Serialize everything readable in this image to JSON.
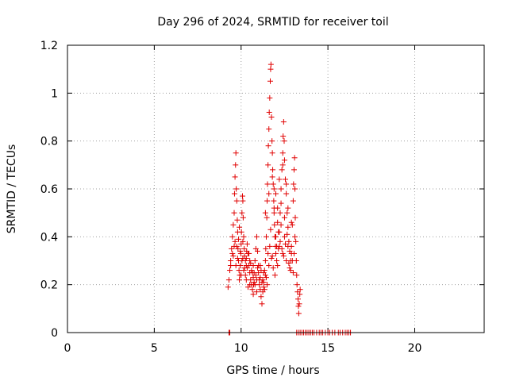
{
  "chart_data": {
    "type": "scatter",
    "title": "Day 296 of 2024, SRMTID for receiver toil",
    "xlabel": "GPS time / hours",
    "ylabel": "SRMTID / TECUs",
    "xlim": [
      0,
      24
    ],
    "ylim": [
      0,
      1.2
    ],
    "xticks": [
      0,
      5,
      10,
      15,
      20
    ],
    "yticks": [
      0,
      0.2,
      0.4,
      0.6,
      0.8,
      1,
      1.2
    ],
    "xtick_labels": [
      "0",
      "5",
      "10",
      "15",
      "20"
    ],
    "ytick_labels": [
      "0",
      "0.2",
      "0.4",
      "0.6",
      "0.8",
      "1",
      "1.2"
    ],
    "grid": true,
    "legend": "none",
    "marker": "plus",
    "color": "#e00000",
    "series": [
      {
        "name": "SRMTID",
        "points": [
          [
            9.3,
            0.0
          ],
          [
            9.35,
            0.0
          ],
          [
            13.2,
            0.0
          ],
          [
            13.3,
            0.0
          ],
          [
            13.4,
            0.0
          ],
          [
            13.5,
            0.0
          ],
          [
            13.6,
            0.0
          ],
          [
            13.7,
            0.0
          ],
          [
            13.8,
            0.0
          ],
          [
            13.9,
            0.0
          ],
          [
            14.0,
            0.0
          ],
          [
            14.1,
            0.0
          ],
          [
            14.2,
            0.0
          ],
          [
            14.35,
            0.0
          ],
          [
            14.5,
            0.0
          ],
          [
            14.6,
            0.0
          ],
          [
            14.7,
            0.0
          ],
          [
            14.85,
            0.0
          ],
          [
            15.0,
            0.0
          ],
          [
            15.1,
            0.0
          ],
          [
            15.25,
            0.0
          ],
          [
            15.4,
            0.0
          ],
          [
            15.6,
            0.0
          ],
          [
            15.7,
            0.0
          ],
          [
            15.85,
            0.0
          ],
          [
            16.0,
            0.0
          ],
          [
            16.1,
            0.0
          ],
          [
            16.2,
            0.0
          ],
          [
            16.3,
            0.0
          ],
          [
            9.25,
            0.19
          ],
          [
            9.3,
            0.22
          ],
          [
            9.35,
            0.26
          ],
          [
            9.4,
            0.3
          ],
          [
            9.45,
            0.35
          ],
          [
            9.5,
            0.4
          ],
          [
            9.5,
            0.33
          ],
          [
            9.55,
            0.45
          ],
          [
            9.6,
            0.5
          ],
          [
            9.62,
            0.58
          ],
          [
            9.65,
            0.65
          ],
          [
            9.68,
            0.7
          ],
          [
            9.7,
            0.75
          ],
          [
            9.72,
            0.6
          ],
          [
            9.75,
            0.55
          ],
          [
            9.78,
            0.47
          ],
          [
            9.8,
            0.42
          ],
          [
            9.82,
            0.35
          ],
          [
            9.85,
            0.3
          ],
          [
            9.88,
            0.26
          ],
          [
            9.9,
            0.22
          ],
          [
            9.92,
            0.24
          ],
          [
            9.95,
            0.28
          ],
          [
            9.98,
            0.33
          ],
          [
            10.0,
            0.37
          ],
          [
            10.02,
            0.42
          ],
          [
            10.05,
            0.5
          ],
          [
            10.08,
            0.57
          ],
          [
            10.1,
            0.55
          ],
          [
            10.12,
            0.48
          ],
          [
            10.15,
            0.4
          ],
          [
            10.18,
            0.35
          ],
          [
            10.2,
            0.32
          ],
          [
            10.25,
            0.3
          ],
          [
            10.3,
            0.28
          ],
          [
            10.32,
            0.34
          ],
          [
            10.35,
            0.37
          ],
          [
            10.4,
            0.33
          ],
          [
            10.45,
            0.28
          ],
          [
            10.5,
            0.25
          ],
          [
            10.55,
            0.22
          ],
          [
            10.6,
            0.2
          ],
          [
            10.65,
            0.18
          ],
          [
            10.7,
            0.16
          ],
          [
            10.72,
            0.2
          ],
          [
            10.75,
            0.25
          ],
          [
            10.8,
            0.3
          ],
          [
            10.85,
            0.35
          ],
          [
            10.9,
            0.4
          ],
          [
            10.95,
            0.34
          ],
          [
            11.0,
            0.28
          ],
          [
            11.05,
            0.22
          ],
          [
            11.1,
            0.18
          ],
          [
            11.15,
            0.15
          ],
          [
            11.2,
            0.12
          ],
          [
            11.25,
            0.17
          ],
          [
            11.3,
            0.21
          ],
          [
            11.35,
            0.26
          ],
          [
            11.4,
            0.3
          ],
          [
            11.42,
            0.35
          ],
          [
            11.45,
            0.4
          ],
          [
            11.48,
            0.48
          ],
          [
            11.5,
            0.55
          ],
          [
            11.52,
            0.62
          ],
          [
            11.55,
            0.7
          ],
          [
            11.57,
            0.78
          ],
          [
            11.6,
            0.85
          ],
          [
            11.62,
            0.92
          ],
          [
            11.65,
            0.98
          ],
          [
            11.68,
            1.05
          ],
          [
            11.7,
            1.1
          ],
          [
            11.72,
            1.12
          ],
          [
            11.75,
            0.9
          ],
          [
            11.78,
            0.8
          ],
          [
            11.8,
            0.75
          ],
          [
            11.82,
            0.68
          ],
          [
            11.85,
            0.62
          ],
          [
            11.88,
            0.55
          ],
          [
            11.9,
            0.5
          ],
          [
            11.92,
            0.45
          ],
          [
            11.95,
            0.4
          ],
          [
            11.98,
            0.36
          ],
          [
            12.0,
            0.33
          ],
          [
            12.05,
            0.3
          ],
          [
            12.1,
            0.28
          ],
          [
            12.15,
            0.35
          ],
          [
            12.2,
            0.42
          ],
          [
            12.25,
            0.5
          ],
          [
            12.3,
            0.6
          ],
          [
            12.35,
            0.68
          ],
          [
            12.4,
            0.75
          ],
          [
            12.42,
            0.82
          ],
          [
            12.45,
            0.88
          ],
          [
            12.48,
            0.8
          ],
          [
            12.5,
            0.72
          ],
          [
            12.55,
            0.64
          ],
          [
            12.6,
            0.58
          ],
          [
            12.65,
            0.5
          ],
          [
            12.7,
            0.44
          ],
          [
            12.75,
            0.38
          ],
          [
            12.8,
            0.34
          ],
          [
            12.85,
            0.3
          ],
          [
            12.9,
            0.36
          ],
          [
            12.95,
            0.45
          ],
          [
            13.0,
            0.55
          ],
          [
            13.02,
            0.62
          ],
          [
            13.05,
            0.68
          ],
          [
            13.08,
            0.73
          ],
          [
            13.1,
            0.6
          ],
          [
            13.12,
            0.48
          ],
          [
            13.15,
            0.38
          ],
          [
            13.18,
            0.3
          ],
          [
            13.2,
            0.24
          ],
          [
            13.22,
            0.2
          ],
          [
            13.25,
            0.17
          ],
          [
            13.28,
            0.14
          ],
          [
            13.3,
            0.11
          ],
          [
            13.32,
            0.08
          ],
          [
            13.35,
            0.12
          ],
          [
            13.38,
            0.16
          ],
          [
            13.4,
            0.18
          ],
          [
            9.6,
            0.36
          ],
          [
            9.7,
            0.28
          ],
          [
            9.8,
            0.31
          ],
          [
            10.0,
            0.24
          ],
          [
            10.1,
            0.31
          ],
          [
            10.2,
            0.27
          ],
          [
            10.3,
            0.22
          ],
          [
            10.4,
            0.19
          ],
          [
            10.5,
            0.3
          ],
          [
            10.6,
            0.26
          ],
          [
            10.7,
            0.23
          ],
          [
            10.8,
            0.2
          ],
          [
            10.9,
            0.17
          ],
          [
            11.0,
            0.25
          ],
          [
            11.1,
            0.23
          ],
          [
            11.2,
            0.21
          ],
          [
            11.3,
            0.19
          ],
          [
            11.4,
            0.24
          ],
          [
            11.6,
            0.28
          ],
          [
            11.8,
            0.32
          ],
          [
            12.0,
            0.4
          ],
          [
            12.2,
            0.36
          ],
          [
            12.4,
            0.33
          ],
          [
            12.6,
            0.3
          ],
          [
            12.8,
            0.27
          ],
          [
            13.0,
            0.25
          ],
          [
            11.9,
            0.6
          ],
          [
            12.1,
            0.52
          ],
          [
            12.3,
            0.45
          ],
          [
            12.5,
            0.4
          ],
          [
            12.7,
            0.36
          ],
          [
            12.9,
            0.33
          ],
          [
            9.4,
            0.28
          ],
          [
            9.55,
            0.32
          ],
          [
            9.65,
            0.38
          ],
          [
            9.75,
            0.36
          ],
          [
            9.85,
            0.39
          ],
          [
            9.95,
            0.34
          ],
          [
            10.05,
            0.3
          ],
          [
            10.15,
            0.26
          ],
          [
            10.25,
            0.24
          ],
          [
            10.35,
            0.27
          ],
          [
            10.45,
            0.33
          ],
          [
            10.55,
            0.29
          ],
          [
            10.65,
            0.25
          ],
          [
            10.75,
            0.21
          ],
          [
            10.85,
            0.24
          ],
          [
            10.95,
            0.27
          ],
          [
            11.05,
            0.2
          ],
          [
            11.15,
            0.26
          ],
          [
            11.25,
            0.22
          ],
          [
            11.35,
            0.18
          ],
          [
            11.45,
            0.23
          ],
          [
            11.55,
            0.33
          ],
          [
            11.65,
            0.36
          ],
          [
            11.75,
            0.31
          ],
          [
            11.85,
            0.27
          ],
          [
            11.95,
            0.24
          ],
          [
            12.05,
            0.36
          ],
          [
            12.15,
            0.42
          ],
          [
            12.25,
            0.38
          ],
          [
            12.35,
            0.35
          ],
          [
            12.45,
            0.32
          ],
          [
            12.55,
            0.37
          ],
          [
            12.65,
            0.41
          ],
          [
            12.75,
            0.29
          ],
          [
            12.85,
            0.26
          ],
          [
            12.95,
            0.3
          ],
          [
            13.05,
            0.33
          ],
          [
            9.9,
            0.44
          ],
          [
            10.1,
            0.38
          ],
          [
            10.3,
            0.31
          ],
          [
            10.5,
            0.2
          ],
          [
            10.7,
            0.28
          ],
          [
            10.9,
            0.22
          ],
          [
            11.1,
            0.28
          ],
          [
            11.3,
            0.25
          ],
          [
            11.5,
            0.2
          ],
          [
            11.7,
            0.43
          ],
          [
            11.9,
            0.52
          ],
          [
            12.1,
            0.46
          ],
          [
            12.3,
            0.54
          ],
          [
            12.5,
            0.48
          ],
          [
            12.7,
            0.52
          ],
          [
            12.9,
            0.46
          ],
          [
            13.1,
            0.4
          ],
          [
            12.2,
            0.64
          ],
          [
            12.4,
            0.7
          ],
          [
            12.6,
            0.62
          ],
          [
            12.0,
            0.58
          ],
          [
            11.8,
            0.65
          ],
          [
            11.6,
            0.58
          ],
          [
            11.4,
            0.5
          ]
        ]
      }
    ]
  }
}
